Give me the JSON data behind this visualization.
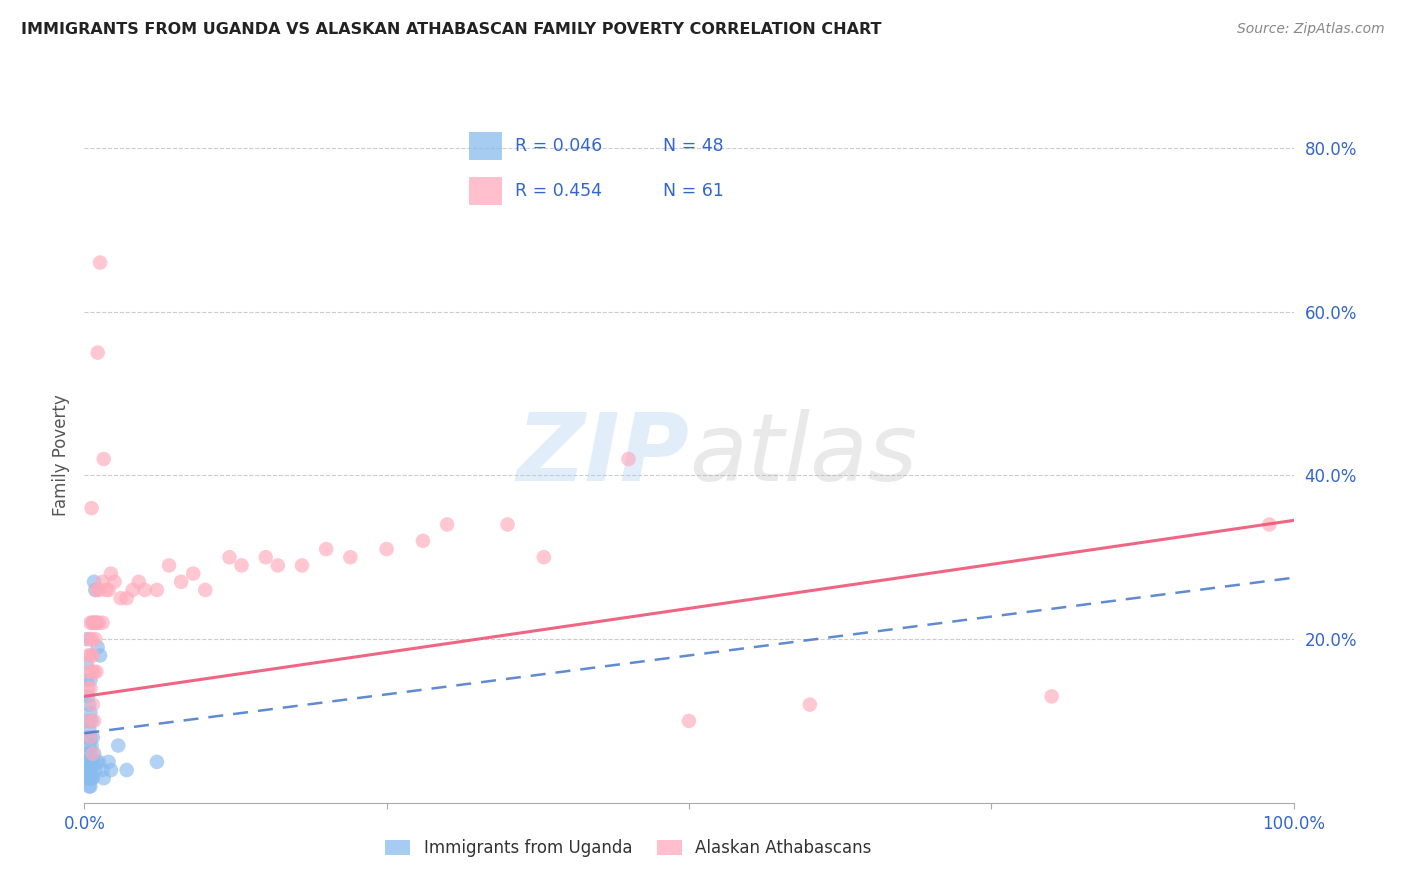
{
  "title": "IMMIGRANTS FROM UGANDA VS ALASKAN ATHABASCAN FAMILY POVERTY CORRELATION CHART",
  "source": "Source: ZipAtlas.com",
  "ylabel": "Family Poverty",
  "xlim": [
    0.0,
    1.0
  ],
  "ylim": [
    0.0,
    0.85
  ],
  "blue_color": "#88BBEE",
  "pink_color": "#FFAABB",
  "blue_line_color": "#4477CC",
  "pink_line_color": "#EE5577",
  "watermark_zip": "ZIP",
  "watermark_atlas": "atlas",
  "blue_scatter": [
    [
      0.002,
      0.2
    ],
    [
      0.002,
      0.17
    ],
    [
      0.002,
      0.15
    ],
    [
      0.003,
      0.13
    ],
    [
      0.003,
      0.1
    ],
    [
      0.003,
      0.08
    ],
    [
      0.003,
      0.06
    ],
    [
      0.003,
      0.05
    ],
    [
      0.003,
      0.04
    ],
    [
      0.003,
      0.03
    ],
    [
      0.004,
      0.12
    ],
    [
      0.004,
      0.09
    ],
    [
      0.004,
      0.07
    ],
    [
      0.004,
      0.05
    ],
    [
      0.004,
      0.04
    ],
    [
      0.004,
      0.03
    ],
    [
      0.004,
      0.02
    ],
    [
      0.005,
      0.15
    ],
    [
      0.005,
      0.11
    ],
    [
      0.005,
      0.08
    ],
    [
      0.005,
      0.06
    ],
    [
      0.005,
      0.04
    ],
    [
      0.005,
      0.03
    ],
    [
      0.005,
      0.02
    ],
    [
      0.006,
      0.1
    ],
    [
      0.006,
      0.07
    ],
    [
      0.006,
      0.05
    ],
    [
      0.006,
      0.03
    ],
    [
      0.007,
      0.22
    ],
    [
      0.007,
      0.08
    ],
    [
      0.007,
      0.05
    ],
    [
      0.007,
      0.03
    ],
    [
      0.008,
      0.27
    ],
    [
      0.008,
      0.06
    ],
    [
      0.009,
      0.26
    ],
    [
      0.009,
      0.04
    ],
    [
      0.01,
      0.22
    ],
    [
      0.01,
      0.05
    ],
    [
      0.011,
      0.19
    ],
    [
      0.012,
      0.05
    ],
    [
      0.013,
      0.18
    ],
    [
      0.015,
      0.04
    ],
    [
      0.016,
      0.03
    ],
    [
      0.02,
      0.05
    ],
    [
      0.022,
      0.04
    ],
    [
      0.028,
      0.07
    ],
    [
      0.035,
      0.04
    ],
    [
      0.06,
      0.05
    ]
  ],
  "pink_scatter": [
    [
      0.003,
      0.18
    ],
    [
      0.003,
      0.14
    ],
    [
      0.004,
      0.2
    ],
    [
      0.004,
      0.16
    ],
    [
      0.004,
      0.1
    ],
    [
      0.005,
      0.22
    ],
    [
      0.005,
      0.18
    ],
    [
      0.005,
      0.14
    ],
    [
      0.005,
      0.08
    ],
    [
      0.006,
      0.36
    ],
    [
      0.006,
      0.2
    ],
    [
      0.006,
      0.16
    ],
    [
      0.007,
      0.22
    ],
    [
      0.007,
      0.18
    ],
    [
      0.007,
      0.12
    ],
    [
      0.007,
      0.06
    ],
    [
      0.008,
      0.22
    ],
    [
      0.008,
      0.16
    ],
    [
      0.008,
      0.1
    ],
    [
      0.009,
      0.2
    ],
    [
      0.01,
      0.26
    ],
    [
      0.01,
      0.22
    ],
    [
      0.01,
      0.16
    ],
    [
      0.011,
      0.55
    ],
    [
      0.012,
      0.26
    ],
    [
      0.012,
      0.22
    ],
    [
      0.013,
      0.66
    ],
    [
      0.015,
      0.27
    ],
    [
      0.015,
      0.22
    ],
    [
      0.016,
      0.42
    ],
    [
      0.018,
      0.26
    ],
    [
      0.02,
      0.26
    ],
    [
      0.022,
      0.28
    ],
    [
      0.025,
      0.27
    ],
    [
      0.03,
      0.25
    ],
    [
      0.035,
      0.25
    ],
    [
      0.04,
      0.26
    ],
    [
      0.045,
      0.27
    ],
    [
      0.05,
      0.26
    ],
    [
      0.06,
      0.26
    ],
    [
      0.07,
      0.29
    ],
    [
      0.08,
      0.27
    ],
    [
      0.09,
      0.28
    ],
    [
      0.1,
      0.26
    ],
    [
      0.12,
      0.3
    ],
    [
      0.13,
      0.29
    ],
    [
      0.15,
      0.3
    ],
    [
      0.16,
      0.29
    ],
    [
      0.18,
      0.29
    ],
    [
      0.2,
      0.31
    ],
    [
      0.22,
      0.3
    ],
    [
      0.25,
      0.31
    ],
    [
      0.28,
      0.32
    ],
    [
      0.3,
      0.34
    ],
    [
      0.35,
      0.34
    ],
    [
      0.38,
      0.3
    ],
    [
      0.45,
      0.42
    ],
    [
      0.5,
      0.1
    ],
    [
      0.6,
      0.12
    ],
    [
      0.8,
      0.13
    ],
    [
      0.98,
      0.34
    ]
  ],
  "blue_line": [
    [
      0.0,
      0.085
    ],
    [
      1.0,
      0.275
    ]
  ],
  "pink_line": [
    [
      0.0,
      0.13
    ],
    [
      1.0,
      0.345
    ]
  ]
}
